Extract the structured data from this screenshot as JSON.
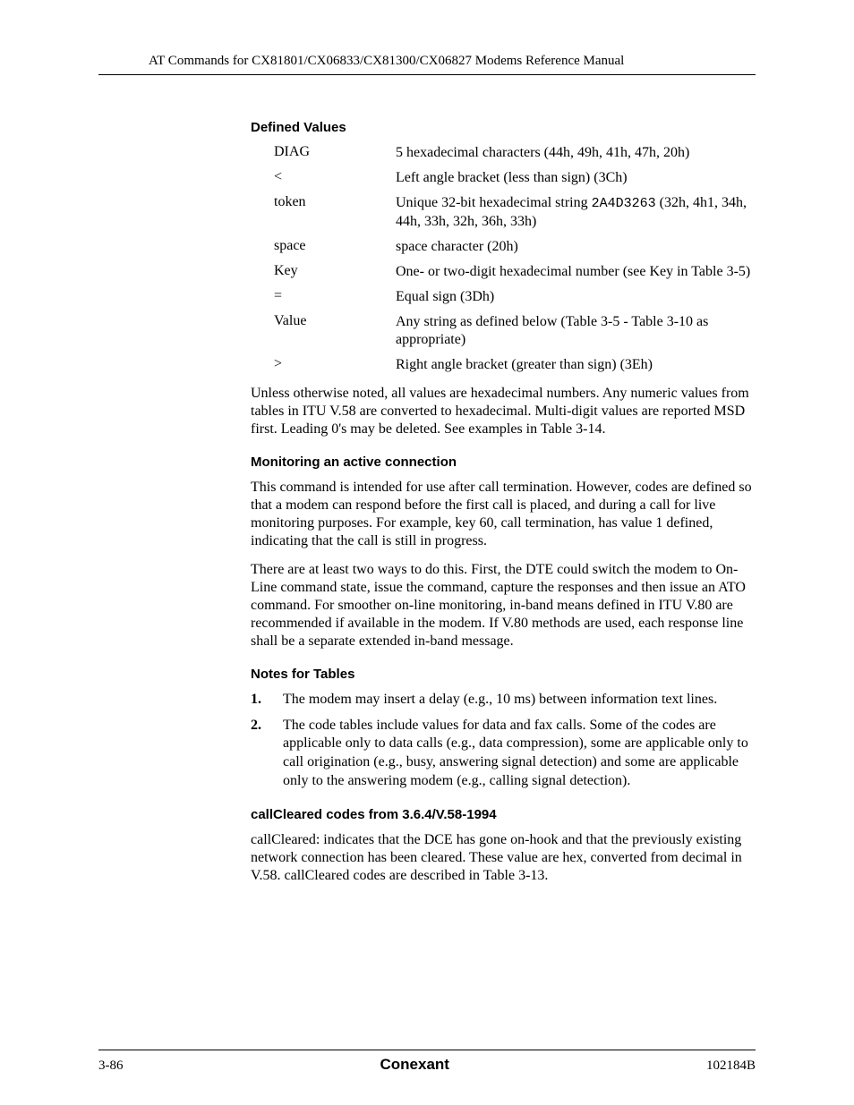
{
  "header": {
    "running_title": "AT Commands for CX81801/CX06833/CX81300/CX06827 Modems Reference Manual"
  },
  "sections": {
    "defined_values": {
      "heading": "Defined Values",
      "rows": [
        {
          "term": "DIAG",
          "desc": "5 hexadecimal characters (44h, 49h, 41h, 47h, 20h)"
        },
        {
          "term": "<",
          "desc": "Left angle bracket (less than sign) (3Ch)"
        },
        {
          "term": "token",
          "desc_pre": "Unique 32-bit hexadecimal string ",
          "mono": "2A4D3263",
          "desc_post": " (32h, 4h1, 34h, 44h, 33h, 32h, 36h, 33h)"
        },
        {
          "term": "space",
          "desc": "space character (20h)"
        },
        {
          "term": "Key",
          "desc": "One- or two-digit hexadecimal number (see Key in Table 3-5)"
        },
        {
          "term": "=",
          "desc": "Equal sign (3Dh)"
        },
        {
          "term": "Value",
          "desc": "Any string as defined below (Table 3-5 - Table 3-10 as appropriate)"
        },
        {
          "term": ">",
          "desc": "Right angle bracket (greater than sign) (3Eh)"
        }
      ],
      "trailing_para": "Unless otherwise noted, all values are hexadecimal numbers. Any numeric values from tables in ITU V.58 are converted to hexadecimal. Multi-digit values are reported MSD first. Leading 0's may be deleted. See examples in Table 3-14."
    },
    "monitoring": {
      "heading": "Monitoring an active connection",
      "para1": "This command is intended for use after call termination. However, codes are defined so that a modem can respond before the first call is placed, and during a call for live monitoring purposes. For example, key 60, call termination, has value 1 defined, indicating that the call is still in progress.",
      "para2": "There are at least two ways to do this. First, the DTE could switch the modem to On-Line command state, issue the command, capture the responses and then issue an ATO command. For smoother on-line monitoring, in-band means defined in ITU V.80 are recommended if available in the modem. If V.80 methods are used, each response line shall be a separate extended in-band message."
    },
    "notes": {
      "heading": "Notes for Tables",
      "items": [
        {
          "num": "1.",
          "text": "The modem may insert a delay (e.g., 10 ms) between information text lines."
        },
        {
          "num": "2.",
          "text": "The code tables include values for data and fax calls. Some of the codes are applicable only to data calls (e.g., data compression), some are applicable only to call origination (e.g., busy, answering signal detection) and some are applicable only to the answering modem (e.g., calling signal detection)."
        }
      ]
    },
    "callcleared": {
      "heading": "callCleared codes from 3.6.4/V.58-1994",
      "para": "callCleared: indicates that the DCE has gone on-hook and that the previously existing network connection has been cleared. These value are hex, converted from decimal in V.58. callCleared codes are described in Table 3-13."
    }
  },
  "footer": {
    "left": "3-86",
    "center": "Conexant",
    "right": "102184B"
  }
}
